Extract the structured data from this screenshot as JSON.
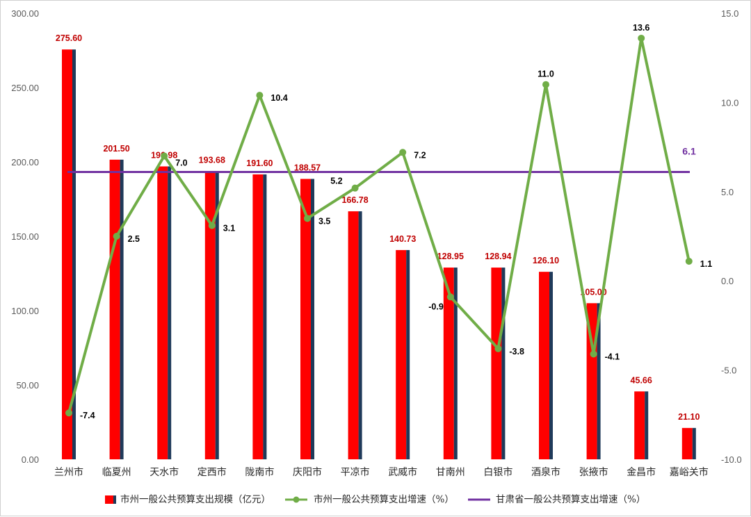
{
  "colors": {
    "bar": "#ff0000",
    "bar_shadow": "#1f3a5a",
    "bar_label": "#c00000",
    "growth_line": "#70ad47",
    "reference_line": "#7030a0",
    "axis_text": "#595959"
  },
  "chart_data": {
    "type": "bar",
    "categories": [
      "兰州市",
      "临夏州",
      "天水市",
      "定西市",
      "陇南市",
      "庆阳市",
      "平凉市",
      "武威市",
      "甘南州",
      "白银市",
      "酒泉市",
      "张掖市",
      "金昌市",
      "嘉峪关市"
    ],
    "series": [
      {
        "name": "市州一般公共预算支出规模（亿元）",
        "type": "bar",
        "axis": "left",
        "values": [
          275.6,
          201.5,
          196.98,
          193.68,
          191.6,
          188.57,
          166.78,
          140.73,
          128.95,
          128.94,
          126.1,
          105.0,
          45.66,
          21.1
        ],
        "labels": [
          "275.60",
          "201.50",
          "196.98",
          "193.68",
          "191.60",
          "188.57",
          "166.78",
          "140.73",
          "128.95",
          "128.94",
          "126.10",
          "105.00",
          "45.66",
          "21.10"
        ]
      },
      {
        "name": "市州一般公共预算支出增速（%）",
        "type": "line",
        "axis": "right",
        "values": [
          -7.4,
          2.5,
          7.0,
          3.1,
          10.4,
          3.5,
          5.2,
          7.2,
          -0.9,
          -3.8,
          11.0,
          -4.1,
          13.6,
          1.1
        ],
        "labels": [
          "-7.4",
          "2.5",
          "7.0",
          "3.1",
          "10.4",
          "3.5",
          "5.2",
          "7.2",
          "-0.9",
          "-3.8",
          "11.0",
          "-4.1",
          "13.6",
          "1.1"
        ]
      },
      {
        "name": "甘肃省一般公共预算支出增速（%）",
        "type": "line",
        "axis": "right",
        "value": 6.1,
        "label": "6.1"
      }
    ],
    "y_left": {
      "ylim": [
        0,
        300
      ],
      "ticks": [
        "0.00",
        "50.00",
        "100.00",
        "150.00",
        "200.00",
        "250.00",
        "300.00"
      ]
    },
    "y_right": {
      "ylim": [
        -10,
        15
      ],
      "ticks": [
        "-10.0",
        "-5.0",
        "0.0",
        "5.0",
        "10.0",
        "15.0"
      ]
    },
    "grid": false,
    "legend_position": "bottom"
  }
}
